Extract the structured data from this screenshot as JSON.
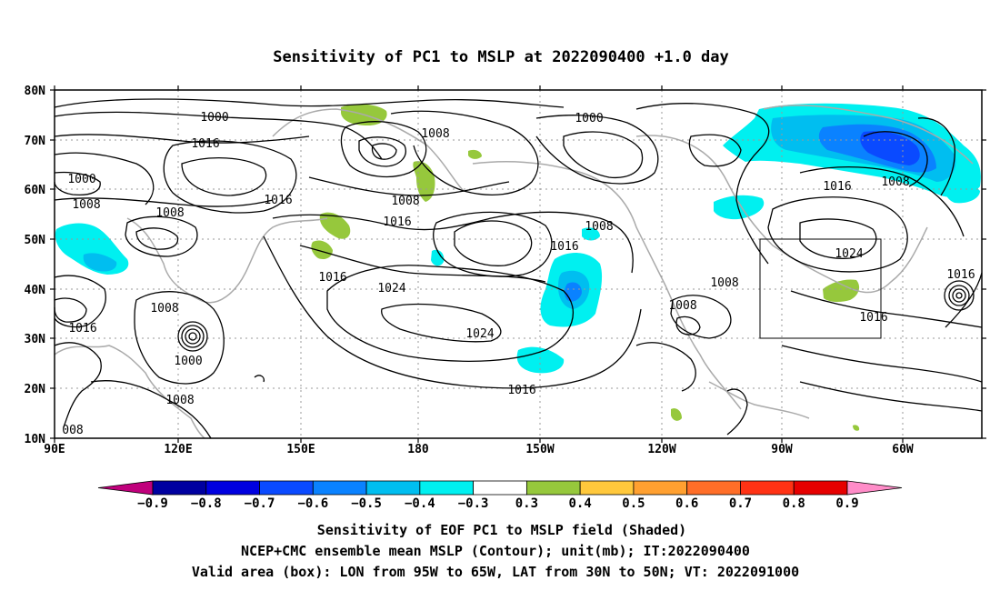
{
  "title": "Sensitivity of PC1 to MSLP at 2022090400 +1.0 day",
  "map": {
    "lat_labels": [
      "80N",
      "70N",
      "60N",
      "50N",
      "40N",
      "30N",
      "20N",
      "10N"
    ],
    "lon_labels": [
      "90E",
      "120E",
      "150E",
      "180",
      "150W",
      "120W",
      "90W",
      "60W"
    ],
    "lat_range": [
      10,
      80
    ],
    "lon_range": [
      "90E",
      "50W"
    ],
    "grid": "dotted",
    "contour_labels": [
      "1000",
      "1016",
      "1000",
      "1008",
      "1008",
      "1016",
      "1008",
      "1016",
      "1008",
      "1016",
      "1016",
      "1000",
      "1008",
      "1016",
      "1024",
      "1008",
      "1016",
      "1024",
      "1000",
      "1008",
      "1008",
      "1008",
      "1016",
      "1008",
      "1016",
      "1024",
      "1016",
      "1016",
      "008"
    ],
    "valid_box": {
      "lon": [
        "95W",
        "65W"
      ],
      "lat": [
        "30N",
        "50N"
      ]
    }
  },
  "colorbar": {
    "labels": [
      "-0.9",
      "-0.8",
      "-0.7",
      "-0.6",
      "-0.5",
      "-0.4",
      "-0.3",
      "0.3",
      "0.4",
      "0.5",
      "0.6",
      "0.7",
      "0.8",
      "0.9"
    ],
    "colors": [
      "#c0007c",
      "#0000a0",
      "#0000e0",
      "#0a4aff",
      "#0a82ff",
      "#00bef0",
      "#00f0f0",
      "#ffffff",
      "#96c83c",
      "#ffc83c",
      "#ffa030",
      "#ff6e28",
      "#ff3214",
      "#e60000",
      "#ff8cc8"
    ],
    "colors_note": "first and last colors are the under/over triangles"
  },
  "captions": [
    "Sensitivity of EOF PC1 to MSLP field (Shaded)",
    "NCEP+CMC ensemble mean MSLP (Contour); unit(mb); IT:2022090400",
    "Valid area (box): LON from 95W to 65W, LAT from 30N to 50N; VT: 2022091000"
  ]
}
